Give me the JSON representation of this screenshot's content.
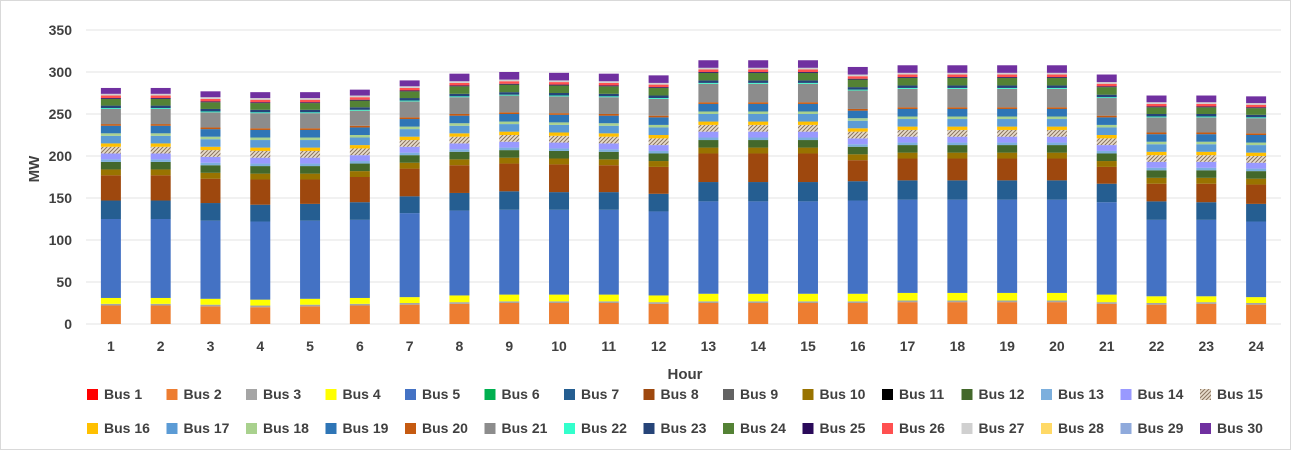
{
  "chart_data": {
    "type": "bar",
    "stacked": true,
    "title": "",
    "xlabel": "Hour",
    "ylabel": "MW",
    "ylim": [
      0,
      350
    ],
    "yticks": [
      0,
      50,
      100,
      150,
      200,
      250,
      300,
      350
    ],
    "grid": true,
    "legend": "bottom",
    "categories": [
      "1",
      "2",
      "3",
      "4",
      "5",
      "6",
      "7",
      "8",
      "9",
      "10",
      "11",
      "12",
      "13",
      "14",
      "15",
      "16",
      "17",
      "18",
      "19",
      "20",
      "21",
      "22",
      "23",
      "24"
    ],
    "series": [
      {
        "name": "Bus 1",
        "color": "#ff0000",
        "values": [
          0,
          0,
          0,
          0,
          0,
          0,
          0,
          0,
          0,
          0,
          0,
          0,
          0,
          0,
          0,
          0,
          0,
          0,
          0,
          0,
          0,
          0,
          0,
          0
        ]
      },
      {
        "name": "Bus 2",
        "color": "#ed7d31",
        "values": [
          22,
          22,
          21,
          20,
          21,
          22,
          23,
          24,
          25,
          25,
          25,
          24,
          25,
          25,
          25,
          25,
          26,
          26,
          26,
          26,
          24,
          23,
          24,
          23
        ]
      },
      {
        "name": "Bus 3",
        "color": "#a5a5a5",
        "values": [
          2,
          2,
          2,
          2,
          2,
          2,
          2,
          2,
          2,
          2,
          2,
          2,
          2,
          2,
          2,
          2,
          2,
          2,
          2,
          2,
          2,
          2,
          2,
          2
        ]
      },
      {
        "name": "Bus 4",
        "color": "#ffff00",
        "values": [
          7,
          7,
          7,
          7,
          7,
          7,
          7,
          8,
          8,
          8,
          8,
          8,
          9,
          9,
          9,
          9,
          9,
          9,
          9,
          9,
          9,
          8,
          7,
          7
        ]
      },
      {
        "name": "Bus 5",
        "color": "#4472c4",
        "values": [
          94,
          94,
          93,
          93,
          93,
          93,
          100,
          101,
          101,
          101,
          101,
          100,
          110,
          110,
          110,
          111,
          111,
          111,
          111,
          111,
          110,
          91,
          91,
          90
        ]
      },
      {
        "name": "Bus 6",
        "color": "#00b050",
        "values": [
          0,
          0,
          0,
          0,
          0,
          0,
          0,
          0,
          0,
          0,
          0,
          0,
          0,
          0,
          0,
          0,
          0,
          0,
          0,
          0,
          0,
          0,
          0,
          0
        ]
      },
      {
        "name": "Bus 7",
        "color": "#255e91",
        "values": [
          22,
          22,
          21,
          20,
          20,
          21,
          20,
          21,
          22,
          21,
          21,
          21,
          23,
          23,
          23,
          23,
          23,
          23,
          23,
          23,
          22,
          22,
          21,
          21
        ]
      },
      {
        "name": "Bus 8",
        "color": "#9e480e",
        "values": [
          30,
          30,
          29,
          30,
          29,
          30,
          33,
          33,
          33,
          33,
          32,
          32,
          34,
          34,
          34,
          25,
          26,
          26,
          26,
          26,
          20,
          21,
          22,
          23
        ]
      },
      {
        "name": "Bus 9",
        "color": "#636363",
        "values": [
          0,
          0,
          0,
          0,
          0,
          0,
          0,
          0,
          0,
          0,
          0,
          0,
          0,
          0,
          0,
          0,
          0,
          0,
          0,
          0,
          0,
          0,
          0,
          0
        ]
      },
      {
        "name": "Bus 10",
        "color": "#997300",
        "values": [
          7,
          7,
          7,
          7,
          7,
          7,
          7,
          7,
          7,
          7,
          7,
          7,
          7,
          7,
          7,
          7,
          7,
          7,
          7,
          7,
          7,
          7,
          7,
          7
        ]
      },
      {
        "name": "Bus 11",
        "color": "#000000",
        "values": [
          0,
          0,
          0,
          0,
          0,
          0,
          0,
          0,
          0,
          0,
          0,
          0,
          0,
          0,
          0,
          0,
          0,
          0,
          0,
          0,
          0,
          0,
          0,
          0
        ]
      },
      {
        "name": "Bus 12",
        "color": "#43682b",
        "values": [
          9,
          9,
          9,
          9,
          9,
          9,
          9,
          9,
          9,
          9,
          9,
          9,
          9,
          9,
          9,
          9,
          9,
          9,
          9,
          9,
          9,
          9,
          9,
          9
        ]
      },
      {
        "name": "Bus 13",
        "color": "#7cafdd",
        "values": [
          3,
          3,
          3,
          3,
          3,
          3,
          3,
          3,
          3,
          3,
          3,
          3,
          3,
          3,
          3,
          3,
          3,
          3,
          3,
          3,
          3,
          3,
          3,
          3
        ]
      },
      {
        "name": "Bus 14",
        "color": "#9999ff",
        "values": [
          7,
          7,
          7,
          7,
          7,
          7,
          7,
          7,
          7,
          7,
          7,
          7,
          7,
          7,
          7,
          7,
          7,
          7,
          7,
          7,
          7,
          7,
          7,
          7
        ]
      },
      {
        "name": "Bus 15",
        "color": "#a08c78",
        "pattern": true,
        "values": [
          8,
          8,
          8,
          8,
          8,
          8,
          8,
          8,
          8,
          8,
          8,
          8,
          8,
          8,
          8,
          8,
          8,
          8,
          8,
          8,
          8,
          8,
          8,
          8
        ]
      },
      {
        "name": "Bus 16",
        "color": "#ffc000",
        "values": [
          4,
          4,
          4,
          4,
          4,
          4,
          4,
          4,
          4,
          4,
          4,
          4,
          4,
          4,
          4,
          4,
          4,
          4,
          4,
          4,
          4,
          4,
          4,
          4
        ]
      },
      {
        "name": "Bus 17",
        "color": "#5b9bd5",
        "values": [
          9,
          9,
          9,
          9,
          9,
          9,
          9,
          9,
          9,
          9,
          9,
          9,
          9,
          9,
          9,
          9,
          9,
          9,
          9,
          9,
          9,
          9,
          9,
          9
        ]
      },
      {
        "name": "Bus 18",
        "color": "#a9d18e",
        "values": [
          3,
          3,
          3,
          3,
          3,
          3,
          3,
          3,
          3,
          3,
          3,
          3,
          3,
          3,
          3,
          3,
          3,
          3,
          3,
          3,
          3,
          3,
          3,
          3
        ]
      },
      {
        "name": "Bus 19",
        "color": "#2e75b6",
        "values": [
          9,
          9,
          9,
          9,
          9,
          9,
          9,
          9,
          9,
          9,
          9,
          9,
          9,
          9,
          9,
          9,
          9,
          9,
          9,
          9,
          9,
          9,
          9,
          9
        ]
      },
      {
        "name": "Bus 20",
        "color": "#c55a11",
        "values": [
          2,
          2,
          2,
          2,
          2,
          2,
          2,
          2,
          2,
          2,
          2,
          2,
          2,
          2,
          2,
          2,
          2,
          2,
          2,
          2,
          2,
          2,
          2,
          2
        ]
      },
      {
        "name": "Bus 21",
        "color": "#8c8c8c",
        "values": [
          18,
          18,
          18,
          18,
          18,
          18,
          19,
          20,
          20,
          20,
          20,
          20,
          22,
          22,
          22,
          22,
          22,
          22,
          22,
          22,
          21,
          18,
          18,
          18
        ]
      },
      {
        "name": "Bus 22",
        "color": "#33ffcc",
        "values": [
          1,
          1,
          1,
          1,
          1,
          1,
          1,
          1,
          1,
          1,
          1,
          1,
          1,
          1,
          1,
          1,
          1,
          1,
          1,
          1,
          1,
          1,
          1,
          1
        ]
      },
      {
        "name": "Bus 23",
        "color": "#264478",
        "values": [
          3,
          3,
          3,
          3,
          3,
          3,
          3,
          3,
          3,
          3,
          3,
          3,
          3,
          3,
          3,
          3,
          3,
          3,
          3,
          3,
          3,
          3,
          3,
          3
        ]
      },
      {
        "name": "Bus 24",
        "color": "#548235",
        "values": [
          8,
          8,
          8,
          8,
          8,
          8,
          8,
          9,
          9,
          9,
          9,
          9,
          9,
          9,
          9,
          9,
          9,
          9,
          9,
          9,
          9,
          8,
          8,
          8
        ]
      },
      {
        "name": "Bus 25",
        "color": "#2a0a5a",
        "values": [
          1,
          1,
          1,
          1,
          1,
          1,
          1,
          1,
          1,
          1,
          1,
          1,
          1,
          1,
          1,
          1,
          1,
          1,
          1,
          1,
          1,
          1,
          1,
          1
        ]
      },
      {
        "name": "Bus 26",
        "color": "#ff5050",
        "values": [
          3,
          3,
          3,
          3,
          3,
          3,
          3,
          3,
          3,
          3,
          3,
          3,
          3,
          3,
          3,
          3,
          3,
          3,
          3,
          3,
          3,
          3,
          3,
          3
        ]
      },
      {
        "name": "Bus 27",
        "color": "#d0d0d0",
        "values": [
          2,
          2,
          2,
          2,
          2,
          2,
          2,
          2,
          2,
          2,
          2,
          2,
          2,
          2,
          2,
          2,
          2,
          2,
          2,
          2,
          2,
          2,
          2,
          2
        ]
      },
      {
        "name": "Bus 28",
        "color": "#ffd966",
        "values": [
          0,
          0,
          0,
          0,
          0,
          0,
          0,
          0,
          0,
          0,
          0,
          0,
          0,
          0,
          0,
          0,
          0,
          0,
          0,
          0,
          0,
          0,
          0,
          0
        ]
      },
      {
        "name": "Bus 29",
        "color": "#8faadc",
        "values": [
          0,
          0,
          0,
          0,
          0,
          0,
          0,
          0,
          0,
          0,
          0,
          0,
          0,
          0,
          0,
          0,
          0,
          0,
          0,
          0,
          0,
          0,
          0,
          0
        ]
      },
      {
        "name": "Bus 30",
        "color": "#7030a0",
        "values": [
          7,
          7,
          7,
          7,
          7,
          7,
          7,
          9,
          9,
          9,
          9,
          9,
          9,
          9,
          9,
          9,
          9,
          9,
          9,
          9,
          9,
          8,
          8,
          8
        ]
      }
    ]
  }
}
